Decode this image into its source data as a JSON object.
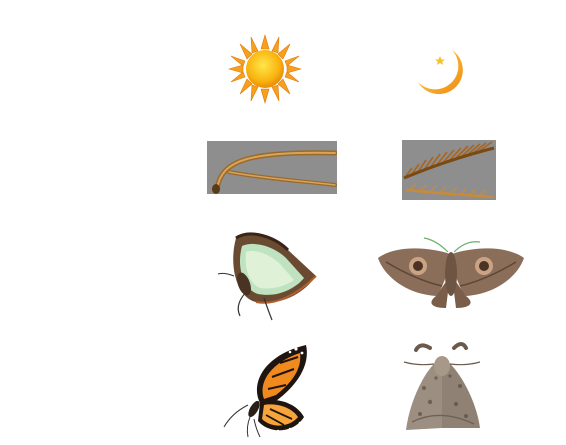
{
  "comparison": {
    "columns": [
      {
        "key": "butterfly",
        "theme_icon": "sun-icon"
      },
      {
        "key": "moth",
        "theme_icon": "crescent-moon-icon"
      }
    ],
    "rows": [
      {
        "topic": "active-time",
        "butterfly": "sun-icon",
        "moth": "crescent-moon-icon"
      },
      {
        "topic": "antenna",
        "butterfly": "clubbed-antenna",
        "moth": "feathery-antenna"
      },
      {
        "topic": "resting-wings",
        "butterfly": "wings-folded-butterfly",
        "moth": "wings-spread-moth"
      },
      {
        "topic": "body",
        "butterfly": "orange-butterfly",
        "moth": "fuzzy-grey-moth"
      }
    ],
    "colors": {
      "sun": "#f9b40f",
      "sun_rays": "#f7a01c",
      "moon": "#f7a928",
      "antenna_bg": "#8e8e8e",
      "moth_brown": "#8a6e5a",
      "butterfly_green": "#bfe3c0",
      "butterfly_orange": "#f08a1e"
    }
  }
}
